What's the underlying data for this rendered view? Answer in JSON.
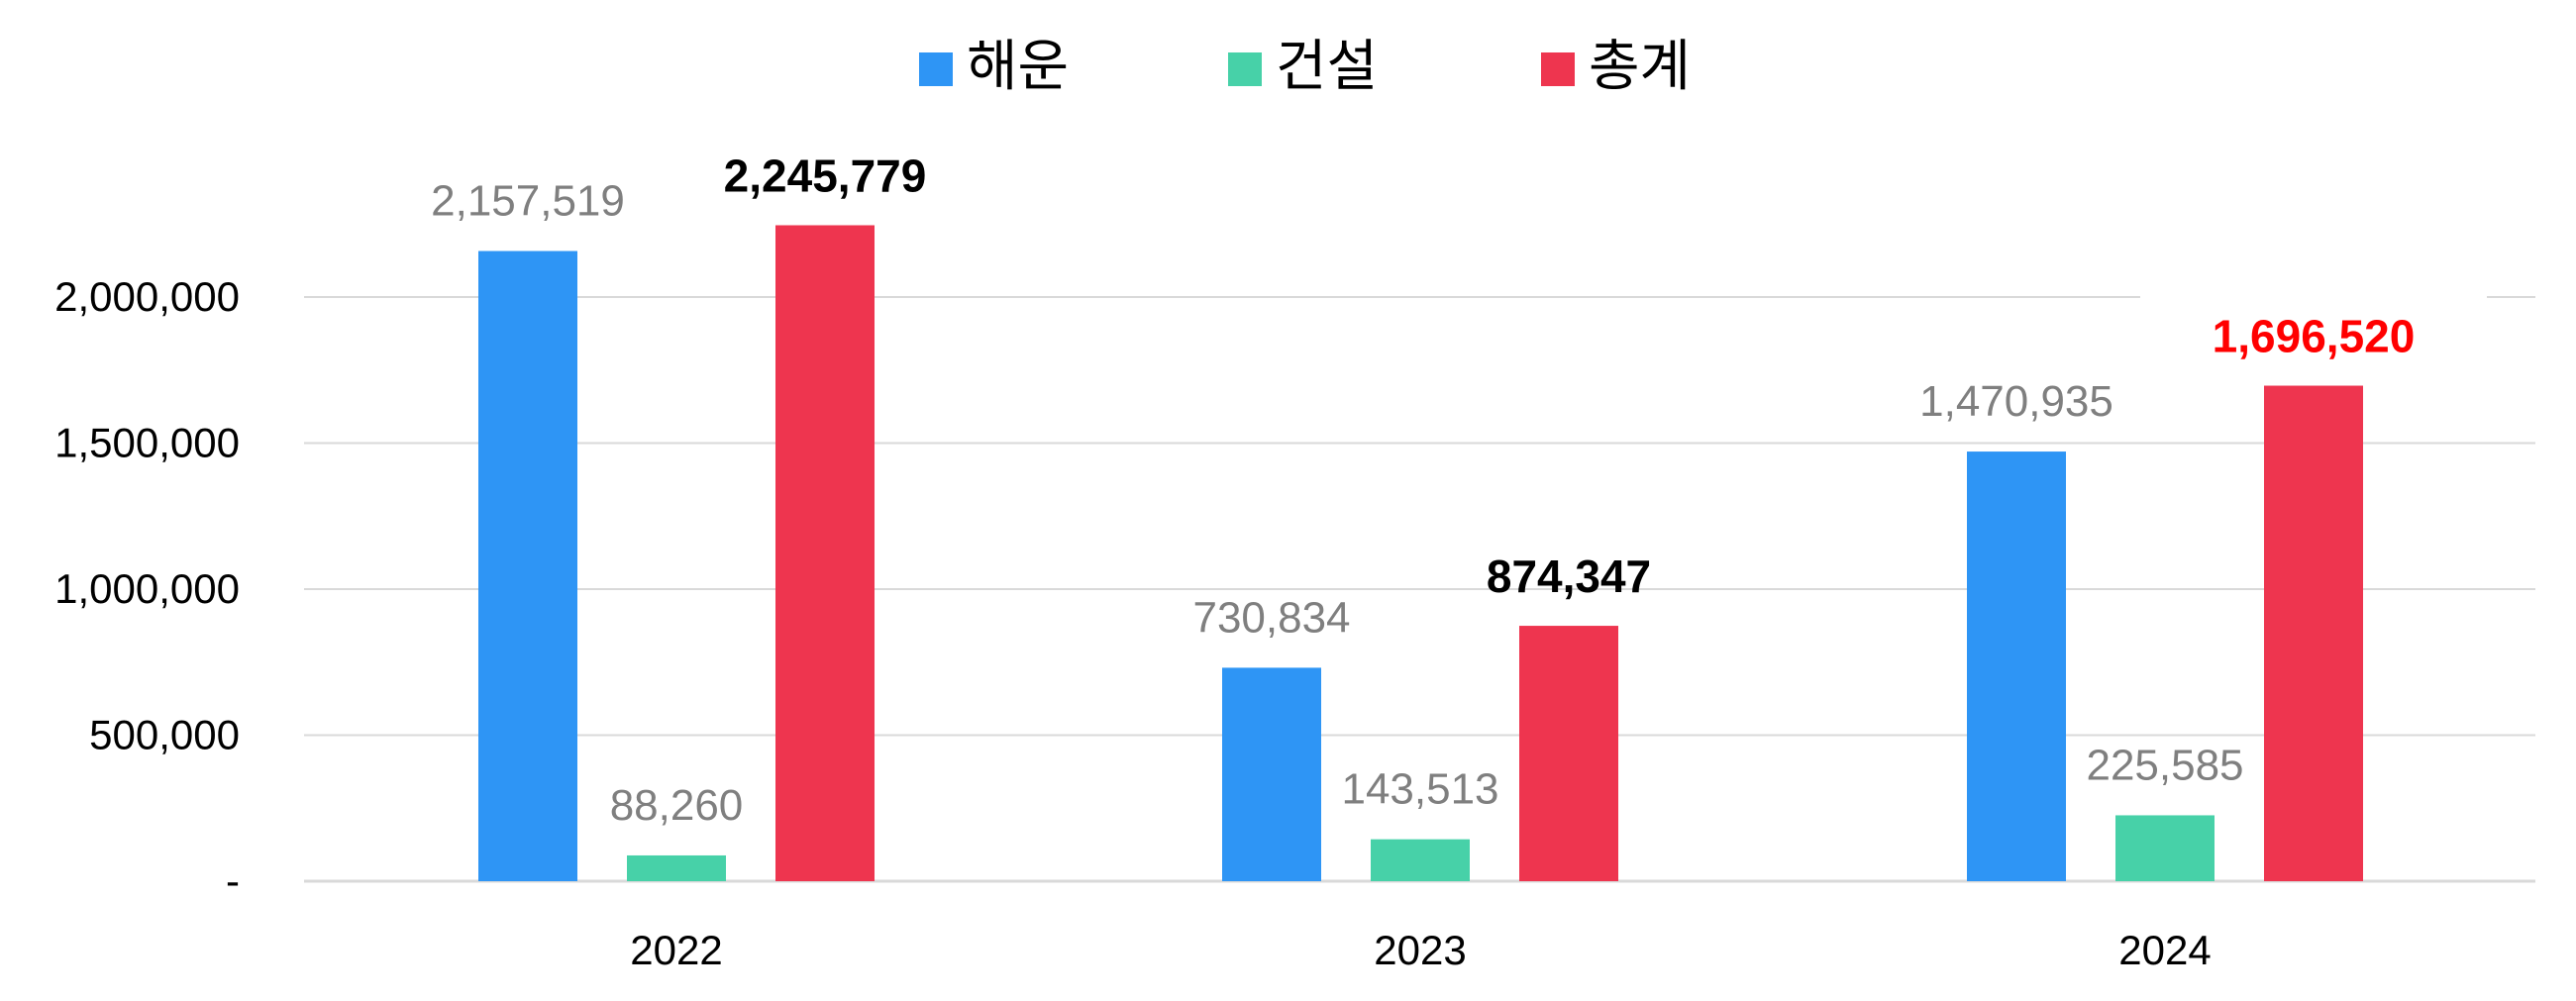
{
  "chart_data": {
    "type": "bar",
    "title": "",
    "xlabel": "",
    "ylabel": "",
    "categories": [
      "2022",
      "2023",
      "2024"
    ],
    "series": [
      {
        "name": "해운",
        "color": "#2e95f5",
        "values": [
          2157519,
          730834,
          1470935
        ],
        "labels": [
          "2,157,519",
          "730,834",
          "1,470,935"
        ]
      },
      {
        "name": "건설",
        "color": "#47d1a8",
        "values": [
          88260,
          143513,
          225585
        ],
        "labels": [
          "88,260",
          "143,513",
          "225,585"
        ]
      },
      {
        "name": "총계",
        "color": "#ee354f",
        "values": [
          2245779,
          874347,
          1696520
        ],
        "labels": [
          "2,245,779",
          "874,347",
          "1,696,520"
        ]
      }
    ],
    "ylim": [
      0,
      2500000
    ],
    "yticks": [
      0,
      500000,
      1000000,
      1500000,
      2000000
    ],
    "ytick_labels": [
      "-",
      "500,000",
      "1,000,000",
      "1,500,000",
      "2,000,000"
    ],
    "grid": true,
    "legend_position": "top-center",
    "highlight_color": "#ff0000"
  }
}
